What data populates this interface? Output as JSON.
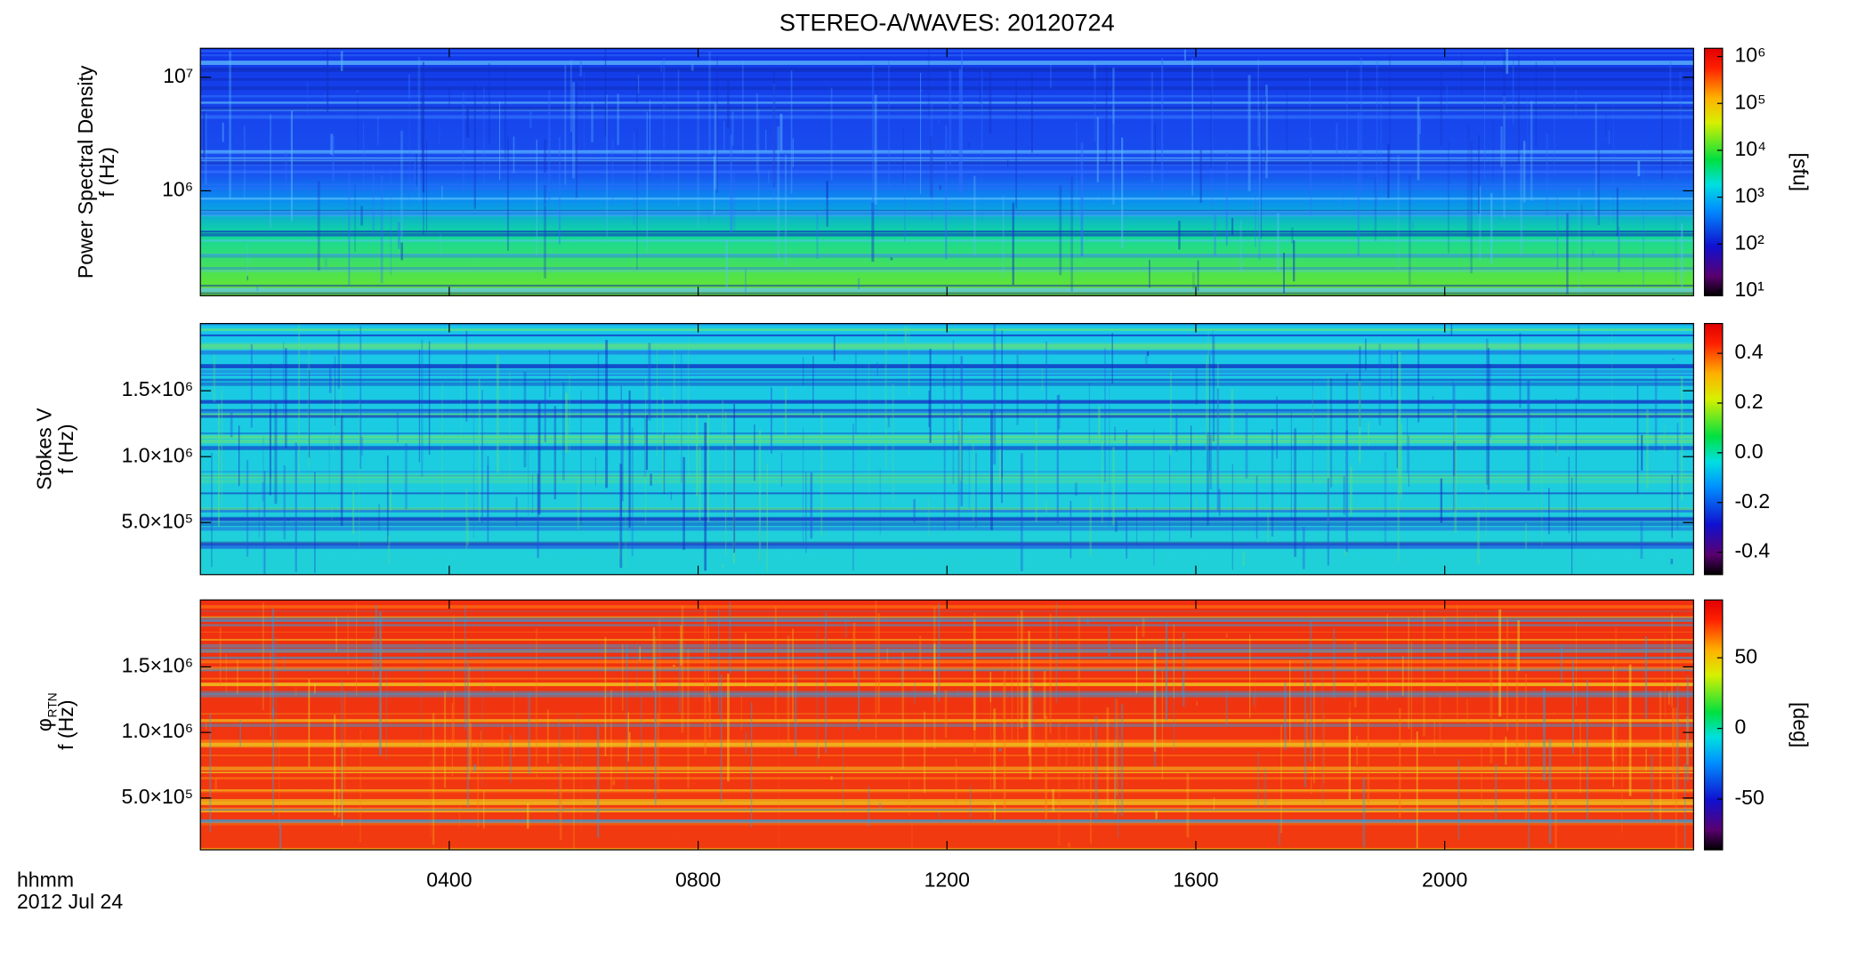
{
  "chart_data": [
    {
      "type": "spectrogram",
      "title": "STEREO-A/WAVES: 20120724",
      "ylabel": "Power Spectral Density",
      "ylabel_unit": "f (Hz)",
      "ylog": true,
      "ylim": [
        119000,
        18000000
      ],
      "yticks": [
        {
          "value": 1000000,
          "label": "10⁶"
        },
        {
          "value": 10000000,
          "label": "10⁷"
        }
      ],
      "colorbar_label": "[sfu]",
      "clog": true,
      "clim": [
        7.9,
        1500000
      ],
      "cticks": [
        {
          "value": 10,
          "label": "10¹"
        },
        {
          "value": 100,
          "label": "10²"
        },
        {
          "value": 1000,
          "label": "10³"
        },
        {
          "value": 10000,
          "label": "10⁴"
        },
        {
          "value": 100000,
          "label": "10⁵"
        },
        {
          "value": 1000000,
          "label": "10⁶"
        }
      ]
    },
    {
      "type": "spectrogram",
      "ylabel": "Stokes V",
      "ylabel_unit": "f (Hz)",
      "ylog": false,
      "ylim": [
        105000,
        2010000
      ],
      "yticks": [
        {
          "value": 500000,
          "label": "5.0×10⁵"
        },
        {
          "value": 1000000,
          "label": "1.0×10⁶"
        },
        {
          "value": 1500000,
          "label": "1.5×10⁶"
        }
      ],
      "clog": false,
      "clim": [
        -0.49,
        0.52
      ],
      "cticks": [
        {
          "value": -0.4,
          "label": "-0.4"
        },
        {
          "value": -0.2,
          "label": "-0.2"
        },
        {
          "value": 0,
          "label": "0.0"
        },
        {
          "value": 0.2,
          "label": "0.2"
        },
        {
          "value": 0.4,
          "label": "0.4"
        }
      ]
    },
    {
      "type": "spectrogram",
      "ylabel": "φ",
      "ylabel_sub": "RTN",
      "ylabel_unit": "f (Hz)",
      "ylog": false,
      "ylim": [
        105000,
        2010000
      ],
      "yticks": [
        {
          "value": 500000,
          "label": "5.0×10⁵"
        },
        {
          "value": 1000000,
          "label": "1.0×10⁶"
        },
        {
          "value": 1500000,
          "label": "1.5×10⁶"
        }
      ],
      "colorbar_label": "[deg]",
      "clog": false,
      "clim": [
        -86,
        91
      ],
      "cticks": [
        -50,
        0,
        50
      ],
      "xlim": [
        0,
        24
      ],
      "xticks": [
        {
          "value": 4,
          "label": "0400"
        },
        {
          "value": 8,
          "label": "0800"
        },
        {
          "value": 12,
          "label": "1200"
        },
        {
          "value": 16,
          "label": "1600"
        },
        {
          "value": 20,
          "label": "2000"
        }
      ],
      "xlabel": "hhmm",
      "date": "2012 Jul 24"
    }
  ]
}
